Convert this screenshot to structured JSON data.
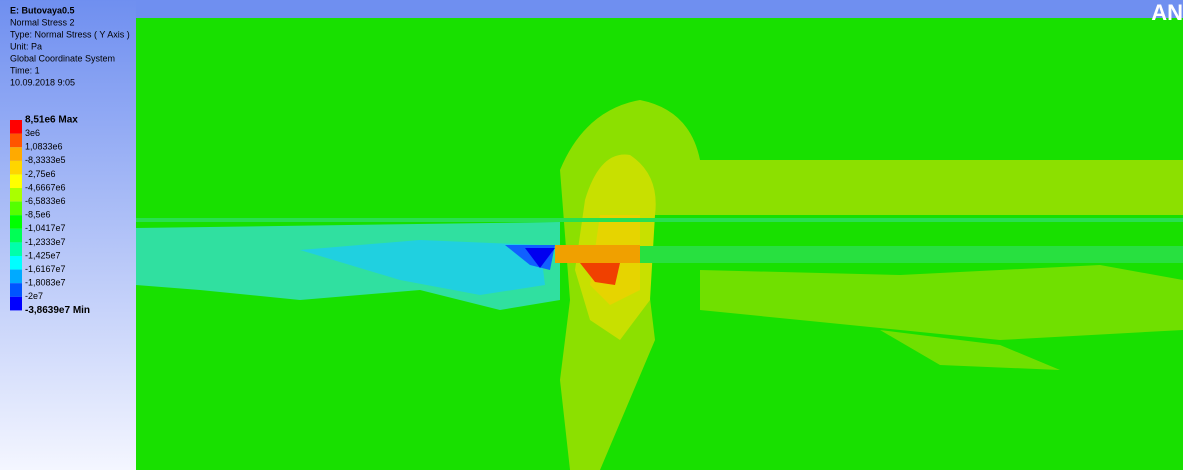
{
  "header": {
    "lines": [
      "E: Butovaya0.5",
      "Normal Stress 2",
      "Type: Normal Stress ( Y Axis )",
      "Unit: Pa",
      "Global Coordinate System",
      "Time: 1",
      "10.09.2018 9:05"
    ]
  },
  "legend": {
    "labels": [
      "8,51e6 Max",
      "3e6",
      "1,0833e6",
      "-8,3333e5",
      "-2,75e6",
      "-4,6667e6",
      "-6,5833e6",
      "-8,5e6",
      "-1,0417e7",
      "-1,2333e7",
      "-1,425e7",
      "-1,6167e7",
      "-1,8083e7",
      "-2e7",
      "-3,8639e7 Min"
    ],
    "colors": [
      "#ff0000",
      "#ff5500",
      "#ffaa00",
      "#ffd500",
      "#ffff00",
      "#aaff00",
      "#55ff00",
      "#00ff00",
      "#00ff55",
      "#00ffaa",
      "#00ffff",
      "#00aaff",
      "#0055ff",
      "#0000ff"
    ]
  },
  "logo": "AN"
}
